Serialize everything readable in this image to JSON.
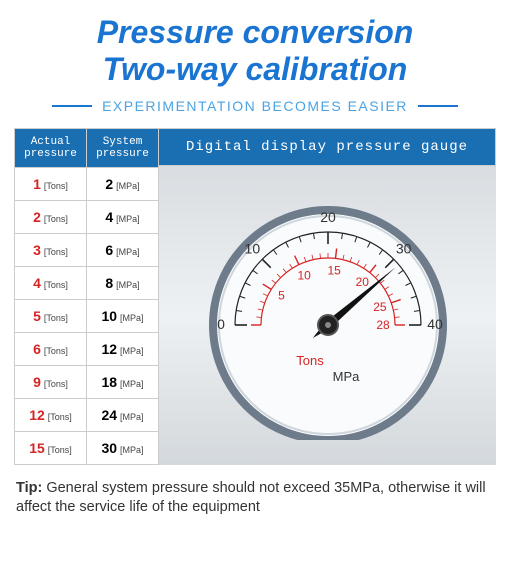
{
  "header": {
    "title_line1": "Pressure conversion",
    "title_line2": "Two-way calibration",
    "title_color": "#1a74d1",
    "title_fontsize": 32,
    "subtitle": "EXPERIMENTATION BECOMES EASIER",
    "subtitle_color": "#4ba3e3",
    "line_color": "#1a74d1"
  },
  "table": {
    "header_bg": "#1a6fb3",
    "col1_header_l1": "Actual",
    "col1_header_l2": "pressure",
    "col2_header_l1": "System",
    "col2_header_l2": "pressure",
    "col1_unit": "[Tons]",
    "col2_unit": "[MPa]",
    "col1_width": 72,
    "col2_width": 72,
    "rows": [
      {
        "actual": "1",
        "system": "2"
      },
      {
        "actual": "2",
        "system": "4"
      },
      {
        "actual": "3",
        "system": "6"
      },
      {
        "actual": "4",
        "system": "8"
      },
      {
        "actual": "5",
        "system": "10"
      },
      {
        "actual": "6",
        "system": "12"
      },
      {
        "actual": "9",
        "system": "18"
      },
      {
        "actual": "12",
        "system": "24"
      },
      {
        "actual": "15",
        "system": "30"
      }
    ],
    "actual_color": "#d62424"
  },
  "gauge_panel": {
    "header": "Digital display pressure gauge",
    "header_bg": "#1a6fb3"
  },
  "gauge": {
    "outer_radius": 115,
    "bezel_color": "#6d7b8a",
    "face_color": "#f9fbfc",
    "outer_scale": {
      "min": 0,
      "max": 40,
      "sweep_start_deg": 180,
      "sweep_end_deg": 0,
      "major_step": 10,
      "minor_step": 2,
      "labels": [
        "0",
        "10",
        "20",
        "30",
        "40"
      ],
      "tick_color": "#222",
      "arc_color": "#222",
      "unit_label": "MPa",
      "unit_color": "#333"
    },
    "inner_scale": {
      "min": 0,
      "max": 28,
      "sweep_start_deg": 180,
      "sweep_end_deg": 0,
      "labels": [
        "5",
        "10",
        "15",
        "20",
        "25",
        "28"
      ],
      "label_positions": [
        5,
        10,
        15,
        20,
        25,
        28
      ],
      "tick_color": "#d62424",
      "arc_color": "#d62424",
      "unit_label": "Tons",
      "unit_color": "#d62424"
    },
    "needle": {
      "value_outer": 31,
      "color": "#111",
      "hub_radius": 10
    }
  },
  "tip": {
    "prefix": "Tip: ",
    "text": "General system pressure should not exceed 35MPa, otherwise it will affect the service life of the equipment"
  }
}
